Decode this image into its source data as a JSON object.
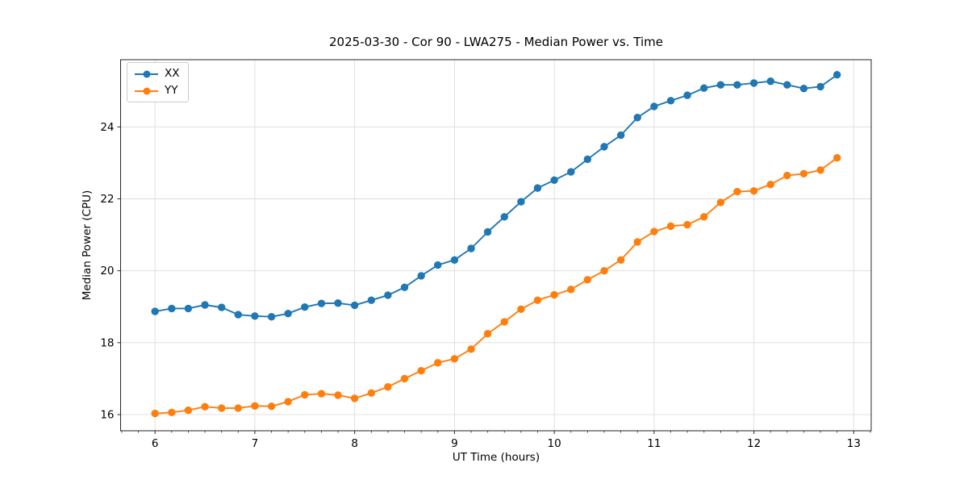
{
  "chart_data": {
    "type": "line",
    "title": "2025-03-30 - Cor 90 - LWA275 - Median Power vs. Time",
    "xlabel": "UT Time (hours)",
    "ylabel": "Median Power (CPU)",
    "xlim": [
      5.655,
      13.175
    ],
    "ylim": [
      15.55,
      25.87
    ],
    "xticks": [
      6,
      7,
      8,
      9,
      10,
      11,
      12,
      13
    ],
    "yticks": [
      16,
      18,
      20,
      22,
      24
    ],
    "grid": true,
    "grid_color": "#dcdcdc",
    "spine_color": "#262626",
    "legend_position": "upper left",
    "x": [
      6.0,
      6.167,
      6.333,
      6.5,
      6.667,
      6.833,
      7.0,
      7.167,
      7.333,
      7.5,
      7.667,
      7.833,
      8.0,
      8.167,
      8.333,
      8.5,
      8.667,
      8.833,
      9.0,
      9.167,
      9.333,
      9.5,
      9.667,
      9.833,
      10.0,
      10.167,
      10.333,
      10.5,
      10.667,
      10.833,
      11.0,
      11.167,
      11.333,
      11.5,
      11.667,
      11.833,
      12.0,
      12.167,
      12.333,
      12.5,
      12.667,
      12.833
    ],
    "series": [
      {
        "name": "XX",
        "color": "#1f77b4",
        "values": [
          18.87,
          18.95,
          18.95,
          19.05,
          18.98,
          18.78,
          18.74,
          18.72,
          18.81,
          18.99,
          19.09,
          19.1,
          19.04,
          19.18,
          19.32,
          19.54,
          19.86,
          20.16,
          20.3,
          20.62,
          21.08,
          21.5,
          21.92,
          22.3,
          22.52,
          22.75,
          23.1,
          23.45,
          23.77,
          24.26,
          24.57,
          24.73,
          24.88,
          25.08,
          25.17,
          25.17,
          25.22,
          25.27,
          25.17,
          25.07,
          25.12,
          25.45
        ]
      },
      {
        "name": "YY",
        "color": "#ff7f0e",
        "values": [
          16.03,
          16.06,
          16.12,
          16.22,
          16.18,
          16.18,
          16.24,
          16.23,
          16.36,
          16.55,
          16.58,
          16.54,
          16.45,
          16.6,
          16.77,
          17.0,
          17.22,
          17.44,
          17.55,
          17.82,
          18.25,
          18.58,
          18.93,
          19.18,
          19.33,
          19.48,
          19.75,
          20.0,
          20.3,
          20.8,
          21.09,
          21.24,
          21.28,
          21.5,
          21.9,
          22.2,
          22.22,
          22.4,
          22.65,
          22.7,
          22.8,
          23.14
        ]
      }
    ]
  }
}
